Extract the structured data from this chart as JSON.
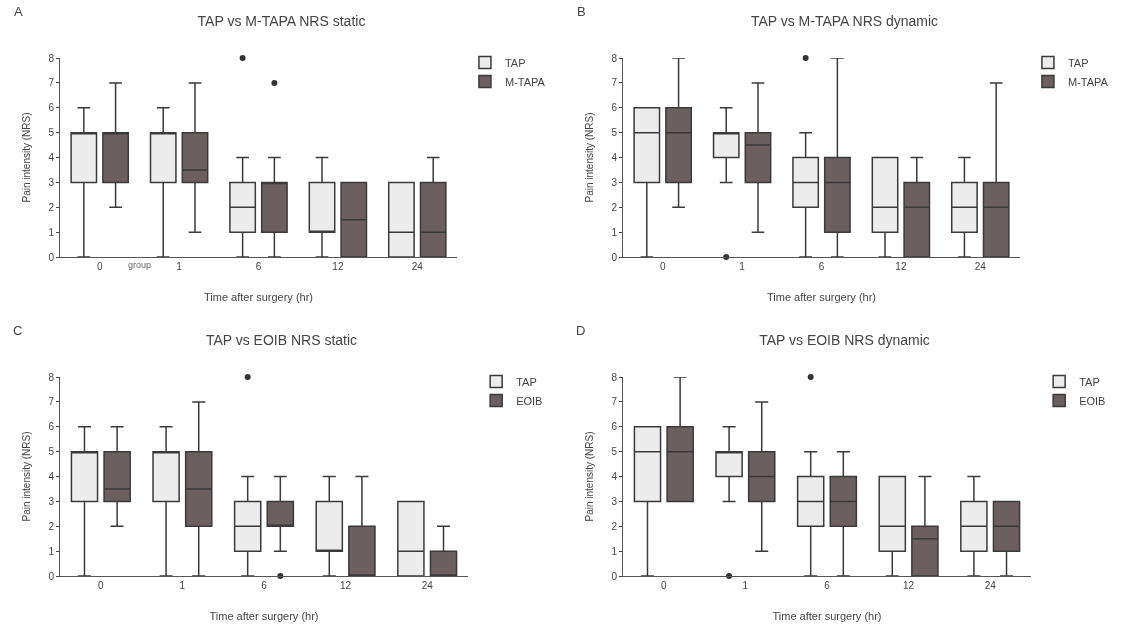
{
  "chart_data": [
    {
      "type": "box",
      "title": "TAP vs M-TAPA NRS static",
      "annotations": [
        "A",
        "group"
      ],
      "xlabel": "Time after surgery (hr)",
      "ylabel": "Pain intensity (NRS)",
      "categories": [
        "0",
        "1",
        "6",
        "12",
        "24"
      ],
      "ylim": [
        0,
        8
      ],
      "yticks": [
        0,
        1,
        2,
        3,
        4,
        5,
        6,
        7,
        8
      ],
      "grid": false,
      "legend": "top right",
      "series": [
        {
          "name": "TAP",
          "color": "#ececec",
          "boxes": [
            {
              "low": 0,
              "q1": 3,
              "median": 5,
              "q3": 5,
              "high": 6
            },
            {
              "low": 0,
              "q1": 3,
              "median": 5,
              "q3": 5,
              "high": 6
            },
            {
              "low": 0,
              "q1": 1,
              "median": 2,
              "q3": 3,
              "high": 4,
              "outliers": [
                8
              ]
            },
            {
              "low": 0,
              "q1": 1,
              "median": 1,
              "q3": 3,
              "high": 4
            },
            {
              "low": 0,
              "q1": 0,
              "median": 1,
              "q3": 3,
              "high": 3
            }
          ]
        },
        {
          "name": "M-TAPA",
          "color": "#6b5f60",
          "boxes": [
            {
              "low": 2,
              "q1": 3,
              "median": 5,
              "q3": 5,
              "high": 7
            },
            {
              "low": 1,
              "q1": 3,
              "median": 3.5,
              "q3": 5,
              "high": 7
            },
            {
              "low": 0,
              "q1": 1,
              "median": 3,
              "q3": 3,
              "high": 4,
              "outliers": [
                7
              ]
            },
            {
              "low": 0,
              "q1": 0,
              "median": 1.5,
              "q3": 3,
              "high": 3
            },
            {
              "low": 0,
              "q1": 0,
              "median": 1,
              "q3": 3,
              "high": 4
            }
          ]
        }
      ]
    },
    {
      "type": "box",
      "title": "TAP vs M-TAPA NRS dynamic",
      "annotations": [
        "B"
      ],
      "xlabel": "Time after surgery (hr)",
      "ylabel": "Pain intensity (NRS)",
      "categories": [
        "0",
        "1",
        "6",
        "12",
        "24"
      ],
      "ylim": [
        0,
        8
      ],
      "yticks": [
        0,
        1,
        2,
        3,
        4,
        5,
        6,
        7,
        8
      ],
      "grid": false,
      "legend": "top right",
      "series": [
        {
          "name": "TAP",
          "color": "#ececec",
          "boxes": [
            {
              "low": 0,
              "q1": 3,
              "median": 5,
              "q3": 6,
              "high": 6
            },
            {
              "low": 3,
              "q1": 4,
              "median": 5,
              "q3": 5,
              "high": 6,
              "outliers": [
                0
              ]
            },
            {
              "low": 0,
              "q1": 2,
              "median": 3,
              "q3": 4,
              "high": 5,
              "outliers": [
                8
              ]
            },
            {
              "low": 0,
              "q1": 1,
              "median": 2,
              "q3": 4,
              "high": 4
            },
            {
              "low": 0,
              "q1": 1,
              "median": 2,
              "q3": 3,
              "high": 4
            }
          ]
        },
        {
          "name": "M-TAPA",
          "color": "#6b5f60",
          "boxes": [
            {
              "low": 2,
              "q1": 3,
              "median": 5,
              "q3": 6,
              "high": 8
            },
            {
              "low": 1,
              "q1": 3,
              "median": 4.5,
              "q3": 5,
              "high": 7
            },
            {
              "low": 0,
              "q1": 1,
              "median": 3,
              "q3": 4,
              "high": 8
            },
            {
              "low": 0,
              "q1": 0,
              "median": 2,
              "q3": 3,
              "high": 4
            },
            {
              "low": 0,
              "q1": 0,
              "median": 2,
              "q3": 3,
              "high": 7
            }
          ]
        }
      ]
    },
    {
      "type": "box",
      "title": "TAP vs EOIB NRS static",
      "annotations": [
        "C"
      ],
      "xlabel": "Time after surgery (hr)",
      "ylabel": "Pain intensity (NRS)",
      "categories": [
        "0",
        "1",
        "6",
        "12",
        "24"
      ],
      "ylim": [
        0,
        8
      ],
      "yticks": [
        0,
        1,
        2,
        3,
        4,
        5,
        6,
        7,
        8
      ],
      "grid": false,
      "legend": "top right",
      "series": [
        {
          "name": "TAP",
          "color": "#ececec",
          "boxes": [
            {
              "low": 0,
              "q1": 3,
              "median": 5,
              "q3": 5,
              "high": 6
            },
            {
              "low": 0,
              "q1": 3,
              "median": 5,
              "q3": 5,
              "high": 6
            },
            {
              "low": 0,
              "q1": 1,
              "median": 2,
              "q3": 3,
              "high": 4,
              "outliers": [
                8
              ]
            },
            {
              "low": 0,
              "q1": 1,
              "median": 1,
              "q3": 3,
              "high": 4
            },
            {
              "low": 0,
              "q1": 0,
              "median": 1,
              "q3": 3,
              "high": 3
            }
          ]
        },
        {
          "name": "EOIB",
          "color": "#6b5f60",
          "boxes": [
            {
              "low": 2,
              "q1": 3,
              "median": 3.5,
              "q3": 5,
              "high": 6
            },
            {
              "low": 0,
              "q1": 2,
              "median": 3.5,
              "q3": 5,
              "high": 7
            },
            {
              "low": 1,
              "q1": 2,
              "median": 2,
              "q3": 3,
              "high": 4,
              "outliers": [
                0
              ]
            },
            {
              "low": 0,
              "q1": 0,
              "median": 0,
              "q3": 2,
              "high": 4
            },
            {
              "low": 0,
              "q1": 0,
              "median": 0,
              "q3": 1,
              "high": 2
            }
          ]
        }
      ]
    },
    {
      "type": "box",
      "title": "TAP vs EOIB NRS dynamic",
      "annotations": [
        "D"
      ],
      "xlabel": "Time after surgery (hr)",
      "ylabel": "Pain intensity (NRS)",
      "categories": [
        "0",
        "1",
        "6",
        "12",
        "24"
      ],
      "ylim": [
        0,
        8
      ],
      "yticks": [
        0,
        1,
        2,
        3,
        4,
        5,
        6,
        7,
        8
      ],
      "grid": false,
      "legend": "top right",
      "series": [
        {
          "name": "TAP",
          "color": "#ececec",
          "boxes": [
            {
              "low": 0,
              "q1": 3,
              "median": 5,
              "q3": 6,
              "high": 6
            },
            {
              "low": 3,
              "q1": 4,
              "median": 5,
              "q3": 5,
              "high": 6,
              "outliers": [
                0
              ]
            },
            {
              "low": 0,
              "q1": 2,
              "median": 3,
              "q3": 4,
              "high": 5,
              "outliers": [
                8
              ]
            },
            {
              "low": 0,
              "q1": 1,
              "median": 2,
              "q3": 4,
              "high": 4
            },
            {
              "low": 0,
              "q1": 1,
              "median": 2,
              "q3": 3,
              "high": 4
            }
          ]
        },
        {
          "name": "EOIB",
          "color": "#6b5f60",
          "boxes": [
            {
              "low": 3,
              "q1": 3,
              "median": 5,
              "q3": 6,
              "high": 8
            },
            {
              "low": 1,
              "q1": 3,
              "median": 4,
              "q3": 5,
              "high": 7
            },
            {
              "low": 0,
              "q1": 2,
              "median": 3,
              "q3": 4,
              "high": 5
            },
            {
              "low": 0,
              "q1": 0,
              "median": 1.5,
              "q3": 2,
              "high": 4
            },
            {
              "low": 0,
              "q1": 1,
              "median": 2,
              "q3": 3,
              "high": 3
            }
          ]
        }
      ]
    }
  ]
}
